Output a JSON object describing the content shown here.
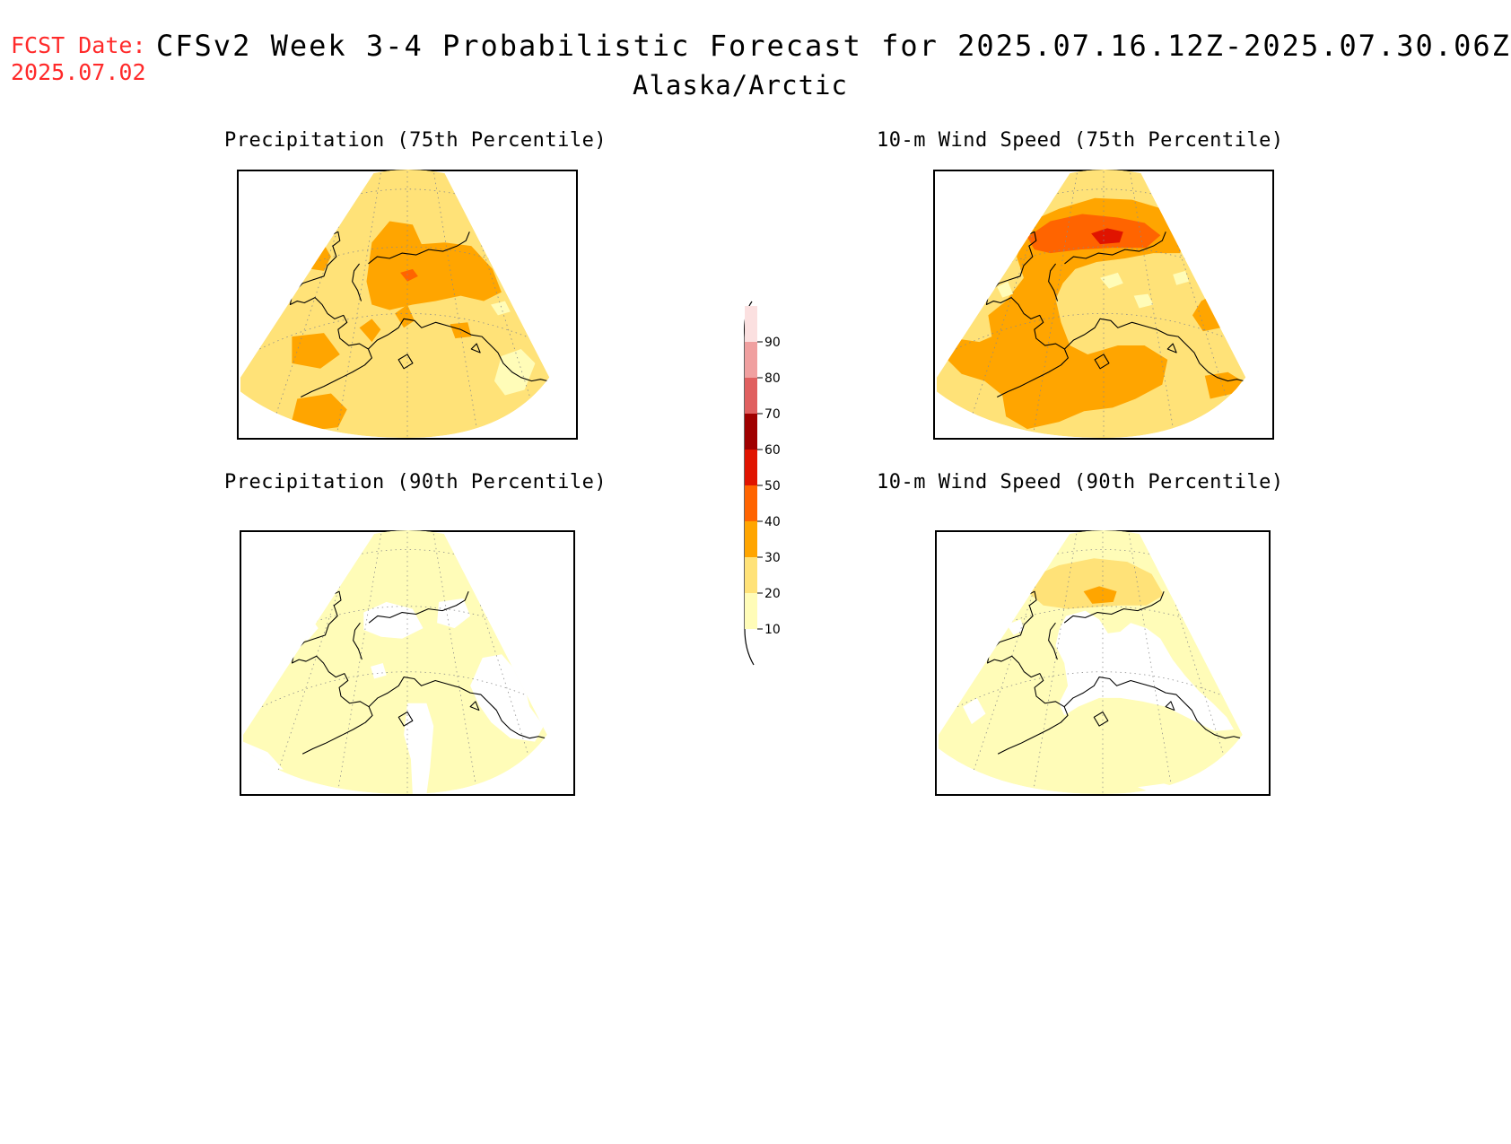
{
  "header": {
    "fcst_label": "FCST Date:",
    "fcst_date": "2025.07.02",
    "title": "CFSv2 Week 3-4 Probabilistic Forecast for 2025.07.16.12Z-2025.07.30.06Z",
    "subtitle": "Alaska/Arctic"
  },
  "panels": [
    {
      "title": "Precipitation (75th Percentile)",
      "variable": "precipitation",
      "percentile": 75,
      "dominant_category": "20-30"
    },
    {
      "title": "10-m Wind Speed (75th Percentile)",
      "variable": "wind_speed_10m",
      "percentile": 75,
      "dominant_category": "30-40"
    },
    {
      "title": "Precipitation (90th Percentile)",
      "variable": "precipitation",
      "percentile": 90,
      "dominant_category": "10-20"
    },
    {
      "title": "10-m Wind Speed (90th Percentile)",
      "variable": "wind_speed_10m",
      "percentile": 90,
      "dominant_category": "10-20"
    }
  ],
  "colorbar": {
    "ticks": [
      "10",
      "20",
      "30",
      "40",
      "50",
      "60",
      "70",
      "80",
      "90"
    ],
    "colors": [
      "#fffcb8",
      "#ffe278",
      "#ffa500",
      "#ff6400",
      "#e01400",
      "#a00000",
      "#e06060",
      "#f0a0a0",
      "#fbe0e0"
    ]
  }
}
